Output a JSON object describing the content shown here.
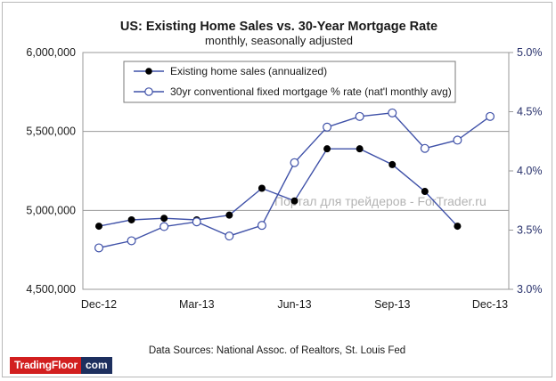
{
  "chart_data": {
    "type": "line",
    "title": "US: Existing Home Sales vs. 30-Year Mortgage Rate",
    "subtitle": "monthly, seasonally adjusted",
    "categories": [
      "Dec-12",
      "Jan-13",
      "Feb-13",
      "Mar-13",
      "Apr-13",
      "May-13",
      "Jun-13",
      "Jul-13",
      "Aug-13",
      "Sep-13",
      "Oct-13",
      "Nov-13",
      "Dec-13"
    ],
    "x_tick_labels": [
      "Dec-12",
      "Mar-13",
      "Jun-13",
      "Sep-13",
      "Dec-13"
    ],
    "left_axis": {
      "ylim": [
        4500000,
        6000000
      ],
      "ticks": [
        "4,500,000",
        "5,000,000",
        "5,500,000",
        "6,000,000"
      ],
      "tick_values": [
        4500000,
        5000000,
        5500000,
        6000000
      ]
    },
    "right_axis": {
      "ylim": [
        3.0,
        5.0
      ],
      "ticks": [
        "3.0%",
        "3.5%",
        "4.0%",
        "4.5%",
        "5.0%"
      ],
      "tick_values": [
        3.0,
        3.5,
        4.0,
        4.5,
        5.0
      ]
    },
    "series": [
      {
        "name": "Existing home sales (annualized)",
        "axis": "left",
        "marker": "filled",
        "color": "#000000",
        "line_color": "#3f51a8",
        "values": [
          4900000,
          4940000,
          4950000,
          4940000,
          4970000,
          5140000,
          5060000,
          5390000,
          5390000,
          5290000,
          5120000,
          4900000,
          null
        ]
      },
      {
        "name": "30yr conventional fixed mortgage % rate (nat'l monthly avg)",
        "axis": "right",
        "marker": "open",
        "color": "#3f51a8",
        "line_color": "#3f51a8",
        "values": [
          3.35,
          3.41,
          3.53,
          3.57,
          3.45,
          3.54,
          4.07,
          4.37,
          4.46,
          4.49,
          4.19,
          4.26,
          4.46
        ]
      }
    ],
    "grid": "horizontal at 5,000,000 and 5,500,000",
    "legend_position": "top-left inside plot"
  },
  "source_note": "Data Sources: National Assoc. of Realtors, St. Louis Fed",
  "watermark": "Портал для трейдеров - ForTrader.ru",
  "badge": {
    "brand": "TradingFloor",
    "suffix": "com"
  },
  "colors": {
    "line": "#3f51a8",
    "right_axis_text": "#27306b",
    "grid": "#9a9a9a",
    "brand_red": "#d21f1f",
    "brand_navy": "#1d2f5e"
  }
}
